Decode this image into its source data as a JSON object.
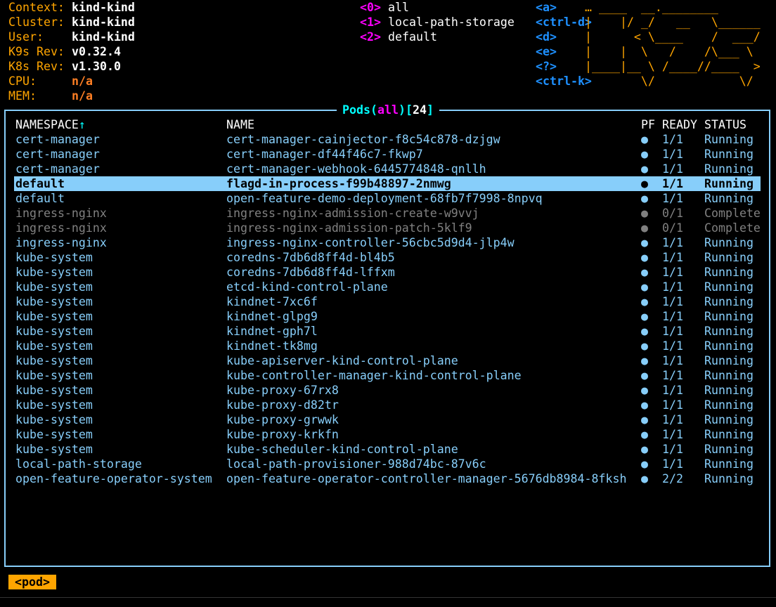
{
  "info": [
    {
      "label": "Context:",
      "value": "kind-kind",
      "kind": "val"
    },
    {
      "label": "Cluster:",
      "value": "kind-kind",
      "kind": "val"
    },
    {
      "label": "User:",
      "value": "kind-kind",
      "kind": "val"
    },
    {
      "label": "K9s Rev:",
      "value": "v0.32.4",
      "kind": "val"
    },
    {
      "label": "K8s Rev:",
      "value": "v1.30.0",
      "kind": "val"
    },
    {
      "label": "CPU:",
      "value": "n/a",
      "kind": "na"
    },
    {
      "label": "MEM:",
      "value": "n/a",
      "kind": "na"
    }
  ],
  "namespaces": [
    {
      "key": "<0>",
      "label": "all"
    },
    {
      "key": "<1>",
      "label": "local-path-storage"
    },
    {
      "key": "<2>",
      "label": "default"
    }
  ],
  "hotkeys": [
    "<a>",
    "<ctrl-d>",
    "<d>",
    "<e>",
    "<?>",
    "<ctrl-k>"
  ],
  "logo": [
    "… ____  __.________       ",
    "|    |/ _/   __   \\______",
    "|      < \\____    /  ___/",
    "|    |  \\   /    /\\___ \\ ",
    "|____|__ \\ /____//____  >",
    "        \\/            \\/ "
  ],
  "table": {
    "title": {
      "resource": "Pods",
      "scope": "all",
      "count": "24"
    },
    "headers": [
      "NAMESPACE",
      "NAME",
      "PF",
      "READY",
      "STATUS"
    ],
    "sort_indicator": "↑",
    "rows": [
      [
        "cert-manager",
        "cert-manager-cainjector-f8c54c878-dzjgw",
        "●",
        "1/1",
        "Running"
      ],
      [
        "cert-manager",
        "cert-manager-df44f46c7-fkwp7",
        "●",
        "1/1",
        "Running"
      ],
      [
        "cert-manager",
        "cert-manager-webhook-6445774848-qnllh",
        "●",
        "1/1",
        "Running"
      ],
      [
        "default",
        "flagd-in-process-f99b48897-2nmwg",
        "●",
        "1/1",
        "Running"
      ],
      [
        "default",
        "open-feature-demo-deployment-68fb7f7998-8npvq",
        "●",
        "1/1",
        "Running"
      ],
      [
        "ingress-nginx",
        "ingress-nginx-admission-create-w9vvj",
        "●",
        "0/1",
        "Complete"
      ],
      [
        "ingress-nginx",
        "ingress-nginx-admission-patch-5klf9",
        "●",
        "0/1",
        "Complete"
      ],
      [
        "ingress-nginx",
        "ingress-nginx-controller-56cbc5d9d4-jlp4w",
        "●",
        "1/1",
        "Running"
      ],
      [
        "kube-system",
        "coredns-7db6d8ff4d-bl4b5",
        "●",
        "1/1",
        "Running"
      ],
      [
        "kube-system",
        "coredns-7db6d8ff4d-lffxm",
        "●",
        "1/1",
        "Running"
      ],
      [
        "kube-system",
        "etcd-kind-control-plane",
        "●",
        "1/1",
        "Running"
      ],
      [
        "kube-system",
        "kindnet-7xc6f",
        "●",
        "1/1",
        "Running"
      ],
      [
        "kube-system",
        "kindnet-glpg9",
        "●",
        "1/1",
        "Running"
      ],
      [
        "kube-system",
        "kindnet-gph7l",
        "●",
        "1/1",
        "Running"
      ],
      [
        "kube-system",
        "kindnet-tk8mg",
        "●",
        "1/1",
        "Running"
      ],
      [
        "kube-system",
        "kube-apiserver-kind-control-plane",
        "●",
        "1/1",
        "Running"
      ],
      [
        "kube-system",
        "kube-controller-manager-kind-control-plane",
        "●",
        "1/1",
        "Running"
      ],
      [
        "kube-system",
        "kube-proxy-67rx8",
        "●",
        "1/1",
        "Running"
      ],
      [
        "kube-system",
        "kube-proxy-d82tr",
        "●",
        "1/1",
        "Running"
      ],
      [
        "kube-system",
        "kube-proxy-grwwk",
        "●",
        "1/1",
        "Running"
      ],
      [
        "kube-system",
        "kube-proxy-krkfn",
        "●",
        "1/1",
        "Running"
      ],
      [
        "kube-system",
        "kube-scheduler-kind-control-plane",
        "●",
        "1/1",
        "Running"
      ],
      [
        "local-path-storage",
        "local-path-provisioner-988d74bc-87v6c",
        "●",
        "1/1",
        "Running"
      ],
      [
        "open-feature-operator-system",
        "open-feature-operator-controller-manager-5676db8984-8fksh",
        "●",
        "2/2",
        "Running"
      ]
    ],
    "selected_index": 3
  },
  "breadcrumb": "<pod>",
  "colors": {
    "accent": "#ffa500",
    "border": "#87cefa",
    "row": "#87cefa",
    "completed": "#808080",
    "key": "#1e90ff"
  }
}
